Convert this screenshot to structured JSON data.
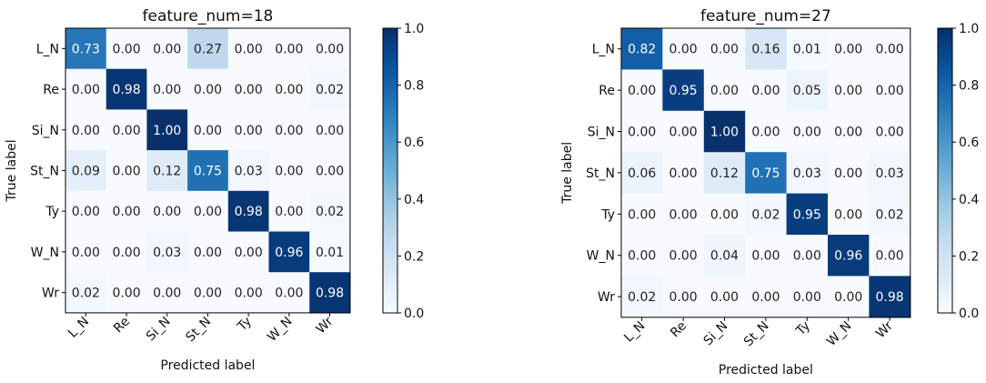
{
  "chart_data": [
    {
      "type": "heatmap",
      "title": "feature_num=18",
      "xlabel": "Predicted label",
      "ylabel": "True label",
      "x_categories": [
        "L_N",
        "Re",
        "Si_N",
        "St_N",
        "Ty",
        "W_N",
        "Wr"
      ],
      "y_categories": [
        "L_N",
        "Re",
        "Si_N",
        "St_N",
        "Ty",
        "W_N",
        "Wr"
      ],
      "values": [
        [
          0.73,
          0.0,
          0.0,
          0.27,
          0.0,
          0.0,
          0.0
        ],
        [
          0.0,
          0.98,
          0.0,
          0.0,
          0.0,
          0.0,
          0.02
        ],
        [
          0.0,
          0.0,
          1.0,
          0.0,
          0.0,
          0.0,
          0.0
        ],
        [
          0.09,
          0.0,
          0.12,
          0.75,
          0.03,
          0.0,
          0.0
        ],
        [
          0.0,
          0.0,
          0.0,
          0.0,
          0.98,
          0.0,
          0.02
        ],
        [
          0.0,
          0.0,
          0.03,
          0.0,
          0.0,
          0.96,
          0.01
        ],
        [
          0.02,
          0.0,
          0.0,
          0.0,
          0.0,
          0.0,
          0.98
        ]
      ],
      "colorbar": {
        "range": [
          0.0,
          1.0
        ],
        "ticks": [
          "0.0",
          "0.2",
          "0.4",
          "0.6",
          "0.8",
          "1.0"
        ],
        "colormap": "Blues",
        "low_color": "#f7fbff",
        "high_color": "#08306b"
      }
    },
    {
      "type": "heatmap",
      "title": "feature_num=27",
      "xlabel": "Predicted label",
      "ylabel": "True label",
      "x_categories": [
        "L_N",
        "Re",
        "Si_N",
        "St_N",
        "Ty",
        "W_N",
        "Wr"
      ],
      "y_categories": [
        "L_N",
        "Re",
        "Si_N",
        "St_N",
        "Ty",
        "W_N",
        "Wr"
      ],
      "values": [
        [
          0.82,
          0.0,
          0.0,
          0.16,
          0.01,
          0.0,
          0.0
        ],
        [
          0.0,
          0.95,
          0.0,
          0.0,
          0.05,
          0.0,
          0.0
        ],
        [
          0.0,
          0.0,
          1.0,
          0.0,
          0.0,
          0.0,
          0.0
        ],
        [
          0.06,
          0.0,
          0.12,
          0.75,
          0.03,
          0.0,
          0.03
        ],
        [
          0.0,
          0.0,
          0.0,
          0.02,
          0.95,
          0.0,
          0.02
        ],
        [
          0.0,
          0.0,
          0.04,
          0.0,
          0.0,
          0.96,
          0.0
        ],
        [
          0.02,
          0.0,
          0.0,
          0.0,
          0.0,
          0.0,
          0.98
        ]
      ],
      "colorbar": {
        "range": [
          0.0,
          1.0
        ],
        "ticks": [
          "0.0",
          "0.2",
          "0.4",
          "0.6",
          "0.8",
          "1.0"
        ],
        "colormap": "Blues",
        "low_color": "#f7fbff",
        "high_color": "#08306b"
      }
    }
  ]
}
